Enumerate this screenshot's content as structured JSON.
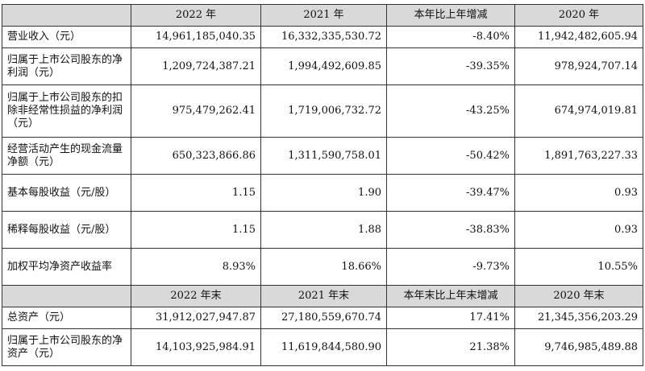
{
  "header1": [
    "",
    "2022 年",
    "2021 年",
    "本年比上年增减",
    "2020 年"
  ],
  "rows1": [
    {
      "label": "营业收入（元）",
      "cells": [
        "14,961,185,040.35",
        "16,332,335,530.72",
        "-8.40%",
        "11,942,482,605.94"
      ]
    },
    {
      "label": "归属于上市公司股东的净利润（元）",
      "cells": [
        "1,209,724,387.21",
        "1,994,492,609.85",
        "-39.35%",
        "978,924,707.14"
      ]
    },
    {
      "label": "归属于上市公司股东的扣除非经常性损益的净利润（元）",
      "cells": [
        "975,479,262.41",
        "1,719,006,732.72",
        "-43.25%",
        "674,974,019.81"
      ]
    },
    {
      "label": "经营活动产生的现金流量净额（元）",
      "cells": [
        "650,323,866.86",
        "1,311,590,758.01",
        "-50.42%",
        "1,891,763,227.33"
      ]
    },
    {
      "label": "基本每股收益（元/股）",
      "cells": [
        "1.15",
        "1.90",
        "-39.47%",
        "0.93"
      ]
    },
    {
      "label": "稀释每股收益（元/股）",
      "cells": [
        "1.15",
        "1.88",
        "-38.83%",
        "0.93"
      ]
    },
    {
      "label": "加权平均净资产收益率",
      "cells": [
        "8.93%",
        "18.66%",
        "-9.73%",
        "10.55%"
      ]
    }
  ],
  "header2": [
    "",
    "2022 年末",
    "2021 年末",
    "本年末比上年末增减",
    "2020 年末"
  ],
  "rows2": [
    {
      "label": "总资产（元）",
      "cells": [
        "31,912,027,947.87",
        "27,180,559,670.74",
        "17.41%",
        "21,345,356,203.29"
      ]
    },
    {
      "label": "归属于上市公司股东的净资产（元）",
      "cells": [
        "14,103,925,984.91",
        "11,619,844,580.90",
        "21.38%",
        "9,746,985,489.88"
      ]
    }
  ]
}
